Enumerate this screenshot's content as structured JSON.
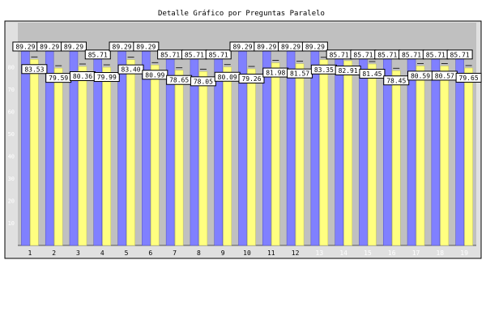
{
  "chart_data": {
    "type": "bar",
    "title": "Detalle Gráfico por Preguntas Paralelo",
    "categories": [
      "1",
      "2",
      "3",
      "4",
      "5",
      "6",
      "7",
      "8",
      "9",
      "10",
      "11",
      "12",
      "13",
      "14",
      "15",
      "16",
      "17",
      "18",
      "19"
    ],
    "series": [
      {
        "color": "#8080ff",
        "values": [
          89.29,
          89.29,
          89.29,
          85.71,
          89.29,
          89.29,
          85.71,
          85.71,
          85.71,
          89.29,
          89.29,
          89.29,
          89.29,
          85.71,
          85.71,
          85.71,
          85.71,
          85.71,
          85.71
        ],
        "labels": [
          "89.29",
          "89.29",
          "89.29",
          "85.71",
          "89.29",
          "89.29",
          "85.71",
          "85.71",
          "85.71",
          "89.29",
          "89.29",
          "89.29",
          "89.29",
          "85.71",
          "85.71",
          "85.71",
          "85.71",
          "85.71",
          "85.71"
        ]
      },
      {
        "color": "#ffff80",
        "values": [
          83.53,
          79.59,
          80.36,
          79.99,
          83.4,
          80.99,
          78.65,
          78.05,
          80.09,
          79.26,
          81.98,
          81.57,
          83.35,
          82.91,
          81.45,
          78.45,
          80.59,
          80.57,
          79.65
        ],
        "labels": [
          "83.53",
          "79.59",
          "80.36",
          "79.99",
          "83.40",
          "80.99",
          "78.65",
          "78.05",
          "80.09",
          "79.26",
          "81.98",
          "81.57",
          "83.35",
          "82.91",
          "81.45",
          "78.45",
          "80.59",
          "80.57",
          "79.65"
        ]
      }
    ],
    "yticks": [
      "10",
      "20",
      "30",
      "40",
      "50",
      "60",
      "70",
      "80"
    ],
    "ylim": [
      0,
      100
    ],
    "grid": false,
    "legend": "none",
    "colors": {
      "plot_background": "#c0c0c0",
      "frame_background": "#e0e0e0",
      "xtick_dark": "#000000",
      "xtick_light": "#ffffff",
      "ytick": "#ffffff"
    },
    "xtick_light_from_index": 12
  }
}
